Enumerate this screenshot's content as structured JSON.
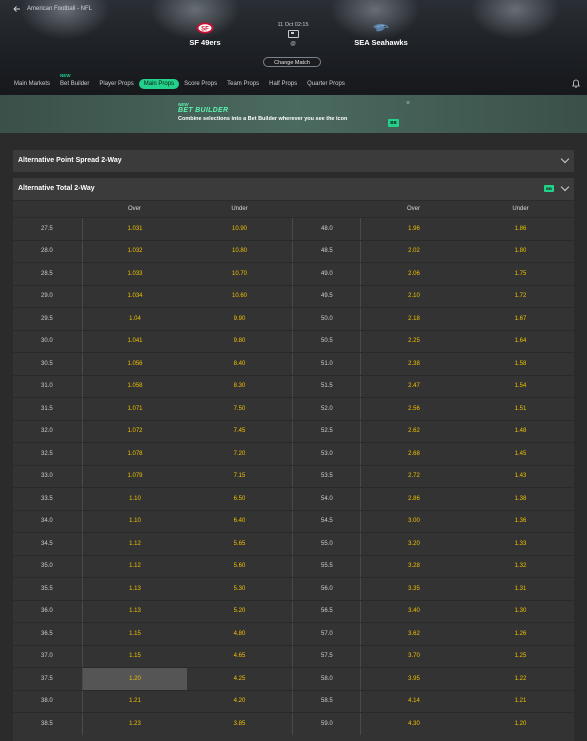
{
  "breadcrumb": "American Football - NFL",
  "match": {
    "home": "SF 49ers",
    "away": "SEA Seahawks",
    "datetime": "11 Oct 02:15",
    "vs": "@",
    "change_match": "Change Match"
  },
  "tabs": [
    {
      "label": "Main Markets",
      "new": ""
    },
    {
      "label": "Bet Builder",
      "new": "NEW"
    },
    {
      "label": "Player Props",
      "new": ""
    },
    {
      "label": "Main Props",
      "new": "",
      "active": true
    },
    {
      "label": "Score Props",
      "new": ""
    },
    {
      "label": "Team Props",
      "new": ""
    },
    {
      "label": "Half Props",
      "new": ""
    },
    {
      "label": "Quarter Props",
      "new": ""
    }
  ],
  "banner": {
    "new": "NEW",
    "title": "BET BUILDER",
    "desc": "Combine selections into a Bet Builder wherever you see the icon",
    "badge": "BB",
    "close": "×"
  },
  "sections": {
    "spread": "Alternative Point Spread 2-Way",
    "total": "Alternative Total 2-Way",
    "total_badge": "BB"
  },
  "table": {
    "headers": {
      "over": "Over",
      "under": "Under",
      "over2": "Over",
      "under2": "Under"
    },
    "rows": [
      {
        "line": "27.5",
        "over": "1.031",
        "under": "10.90",
        "line2": "48.0",
        "over2": "1.96",
        "under2": "1.86"
      },
      {
        "line": "28.0",
        "over": "1.032",
        "under": "10.80",
        "line2": "48.5",
        "over2": "2.02",
        "under2": "1.80"
      },
      {
        "line": "28.5",
        "over": "1.033",
        "under": "10.70",
        "line2": "49.0",
        "over2": "2.06",
        "under2": "1.75"
      },
      {
        "line": "29.0",
        "over": "1.034",
        "under": "10.60",
        "line2": "49.5",
        "over2": "2.10",
        "under2": "1.72"
      },
      {
        "line": "29.5",
        "over": "1.04",
        "under": "9.90",
        "line2": "50.0",
        "over2": "2.18",
        "under2": "1.67"
      },
      {
        "line": "30.0",
        "over": "1.041",
        "under": "9.80",
        "line2": "50.5",
        "over2": "2.25",
        "under2": "1.64"
      },
      {
        "line": "30.5",
        "over": "1.056",
        "under": "8.40",
        "line2": "51.0",
        "over2": "2.38",
        "under2": "1.58"
      },
      {
        "line": "31.0",
        "over": "1.058",
        "under": "8.30",
        "line2": "51.5",
        "over2": "2.47",
        "under2": "1.54"
      },
      {
        "line": "31.5",
        "over": "1.071",
        "under": "7.50",
        "line2": "52.0",
        "over2": "2.56",
        "under2": "1.51"
      },
      {
        "line": "32.0",
        "over": "1.072",
        "under": "7.45",
        "line2": "52.5",
        "over2": "2.62",
        "under2": "1.48"
      },
      {
        "line": "32.5",
        "over": "1.078",
        "under": "7.20",
        "line2": "53.0",
        "over2": "2.68",
        "under2": "1.45"
      },
      {
        "line": "33.0",
        "over": "1.079",
        "under": "7.15",
        "line2": "53.5",
        "over2": "2.72",
        "under2": "1.43"
      },
      {
        "line": "33.5",
        "over": "1.10",
        "under": "6.50",
        "line2": "54.0",
        "over2": "2.86",
        "under2": "1.38"
      },
      {
        "line": "34.0",
        "over": "1.10",
        "under": "6.40",
        "line2": "54.5",
        "over2": "3.00",
        "under2": "1.36"
      },
      {
        "line": "34.5",
        "over": "1.12",
        "under": "5.65",
        "line2": "55.0",
        "over2": "3.20",
        "under2": "1.33"
      },
      {
        "line": "35.0",
        "over": "1.12",
        "under": "5.60",
        "line2": "55.5",
        "over2": "3.28",
        "under2": "1.32"
      },
      {
        "line": "35.5",
        "over": "1.13",
        "under": "5.30",
        "line2": "56.0",
        "over2": "3.35",
        "under2": "1.31"
      },
      {
        "line": "36.0",
        "over": "1.13",
        "under": "5.20",
        "line2": "56.5",
        "over2": "3.40",
        "under2": "1.30"
      },
      {
        "line": "36.5",
        "over": "1.15",
        "under": "4.80",
        "line2": "57.0",
        "over2": "3.62",
        "under2": "1.26"
      },
      {
        "line": "37.0",
        "over": "1.15",
        "under": "4.65",
        "line2": "57.5",
        "over2": "3.70",
        "under2": "1.25"
      },
      {
        "line": "37.5",
        "over": "1.20",
        "under": "4.25",
        "line2": "58.0",
        "over2": "3.95",
        "under2": "1.22",
        "selected": true
      },
      {
        "line": "38.0",
        "over": "1.21",
        "under": "4.20",
        "line2": "58.5",
        "over2": "4.14",
        "under2": "1.21"
      },
      {
        "line": "38.5",
        "over": "1.23",
        "under": "3.85",
        "line2": "59.0",
        "over2": "4.30",
        "under2": "1.20"
      }
    ]
  },
  "colors": {
    "accent": "#23d18b",
    "odds": "#f2c200"
  }
}
